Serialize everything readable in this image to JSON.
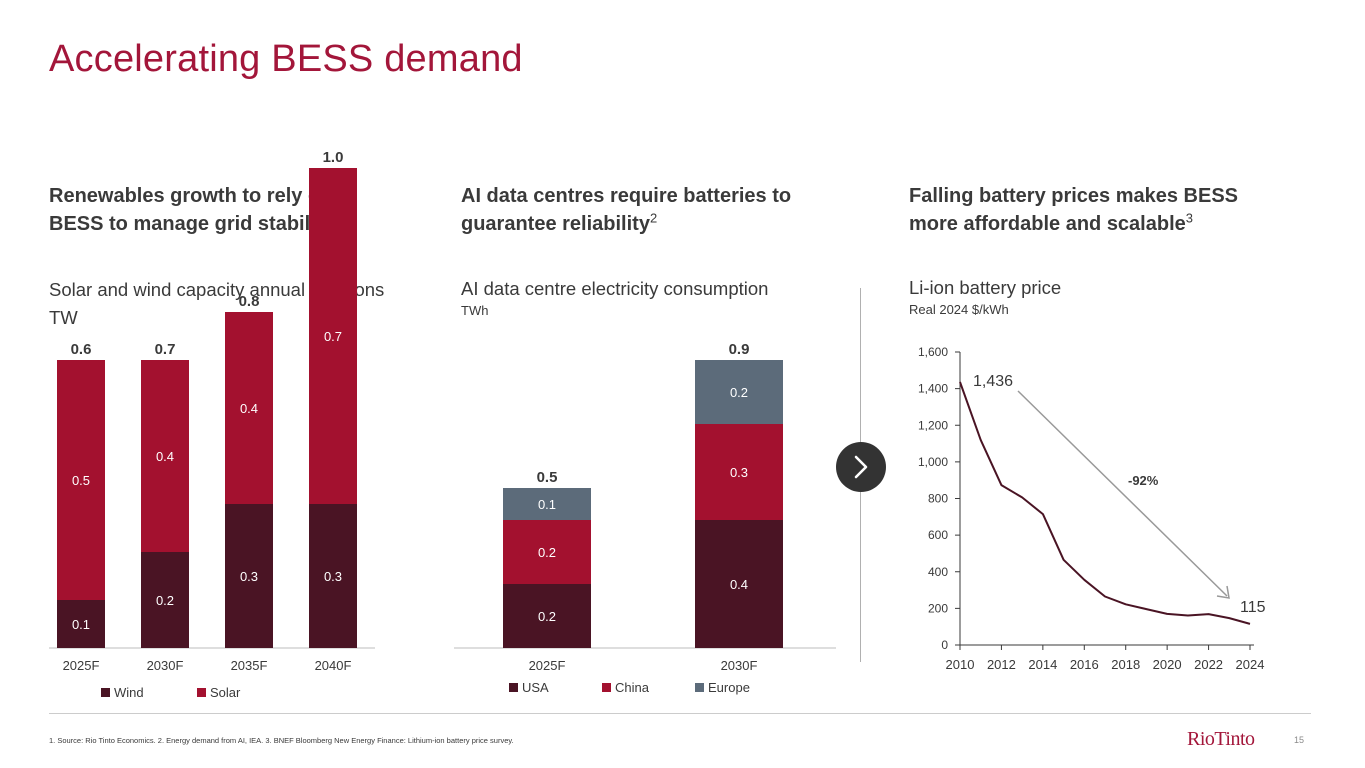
{
  "page": {
    "title": "Accelerating BESS demand",
    "footnote": "1. Source: Rio Tinto Economics. 2. Energy demand from AI, IEA. 3. BNEF Bloomberg New Energy Finance: Lithium-ion battery price survey.",
    "logo_text": "RioTinto",
    "page_number": "15",
    "icons": {
      "next": "chevron-right-icon"
    }
  },
  "columns": [
    {
      "heading_line1": "Renewables growth to rely on",
      "heading_line2": "BESS to manage grid stability",
      "heading_sup": ""
    },
    {
      "heading_line1": "AI data centres require batteries to",
      "heading_line2": "guarantee reliability",
      "heading_sup": "2"
    },
    {
      "heading_line1": "Falling battery prices makes BESS",
      "heading_line2": "more affordable and scalable",
      "heading_sup": "3"
    }
  ],
  "colors": {
    "wind": "#4a1424",
    "solar": "#a3112f",
    "usa": "#4a1424",
    "china": "#a3112f",
    "europe": "#5c6b7a",
    "line": "#4a1424",
    "title": "#a3163a"
  },
  "chart_data": [
    {
      "type": "bar",
      "stacked": true,
      "title": "Solar and wind capacity annual additions",
      "ylabel": "TW",
      "categories": [
        "2025F",
        "2030F",
        "2035F",
        "2040F"
      ],
      "series": [
        {
          "name": "Wind",
          "values": [
            0.1,
            0.2,
            0.3,
            0.3
          ],
          "labels": [
            "0.1",
            "0.2",
            "0.3",
            "0.3"
          ]
        },
        {
          "name": "Solar",
          "values": [
            0.5,
            0.4,
            0.4,
            0.7
          ],
          "labels": [
            "0.5",
            "0.4",
            "0.4",
            "0.7"
          ]
        }
      ],
      "totals": [
        "0.6",
        "0.7",
        "0.8",
        "1.0"
      ],
      "legend": [
        "Wind",
        "Solar"
      ]
    },
    {
      "type": "bar",
      "stacked": true,
      "title": "AI data centre electricity consumption",
      "ylabel": "TWh",
      "categories": [
        "2025F",
        "2030F"
      ],
      "series": [
        {
          "name": "USA",
          "values": [
            0.2,
            0.4
          ],
          "labels": [
            "0.2",
            "0.4"
          ]
        },
        {
          "name": "China",
          "values": [
            0.2,
            0.3
          ],
          "labels": [
            "0.2",
            "0.3"
          ]
        },
        {
          "name": "Europe",
          "values": [
            0.1,
            0.2
          ],
          "labels": [
            "0.1",
            "0.2"
          ]
        }
      ],
      "totals": [
        "0.5",
        "0.9"
      ],
      "legend": [
        "USA",
        "China",
        "Europe"
      ]
    },
    {
      "type": "line",
      "title": "Li-ion battery price",
      "ylabel": "Real 2024 $/kWh",
      "x": [
        2010,
        2011,
        2012,
        2013,
        2014,
        2015,
        2016,
        2017,
        2018,
        2019,
        2020,
        2021,
        2022,
        2023,
        2024
      ],
      "y": [
        1436,
        1120,
        873,
        806,
        715,
        465,
        356,
        265,
        222,
        196,
        170,
        161,
        169,
        147,
        115
      ],
      "ylim": [
        0,
        1600
      ],
      "yticks": [
        "0",
        "200",
        "400",
        "600",
        "800",
        "1,000",
        "1,200",
        "1,400",
        "1,600"
      ],
      "xticks": [
        "2010",
        "2012",
        "2014",
        "2016",
        "2018",
        "2020",
        "2022",
        "2024"
      ],
      "annotations": {
        "start": "1,436",
        "end": "115",
        "change": "-92%"
      }
    }
  ]
}
